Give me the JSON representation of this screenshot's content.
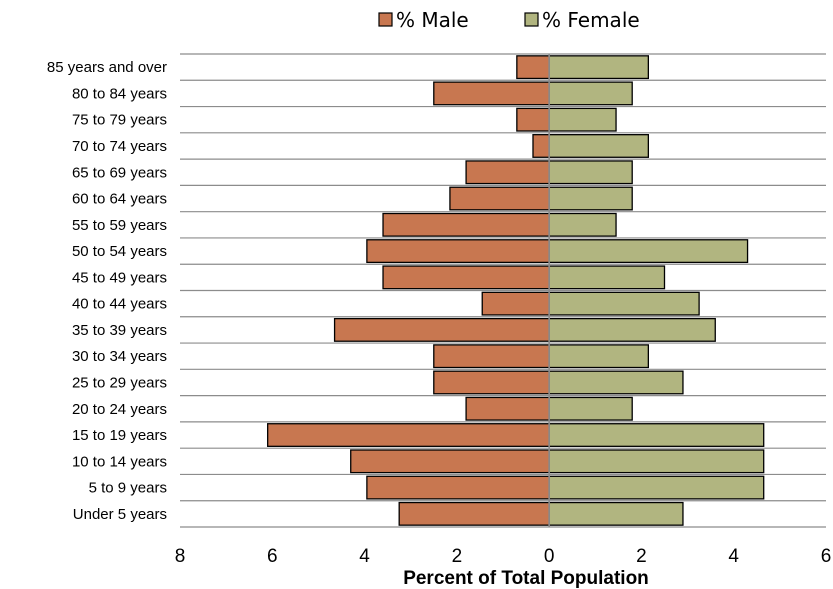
{
  "chart_data": {
    "type": "bar",
    "orientation": "horizontal",
    "subtype": "population-pyramid",
    "title": "",
    "xlabel": "Percent of Total Population",
    "ylabel": "",
    "xlim": [
      -8,
      6
    ],
    "x_ticks": [
      -8,
      -6,
      -4,
      -2,
      0,
      2,
      4,
      6
    ],
    "x_tick_labels": [
      "8",
      "6",
      "4",
      "2",
      "0",
      "2",
      "4",
      "6"
    ],
    "grid": "horizontal-lines",
    "legend": {
      "position": "top-center"
    },
    "categories": [
      "85 years and over",
      "80 to 84 years",
      "75 to 79 years",
      "70 to 74 years",
      "65 to 69 years",
      "60 to 64 years",
      "55 to 59 years",
      "50 to 54 years",
      "45 to 49 years",
      "40 to 44 years",
      "35 to 39 years",
      "30 to 34 years",
      "25 to 29 years",
      "20 to 24 years",
      "15 to 19 years",
      "10 to 14 years",
      "5 to 9 years",
      "Under 5 years"
    ],
    "series": [
      {
        "name": "% Male",
        "color": "#c87750",
        "values": [
          -0.7,
          -2.5,
          -0.7,
          -0.35,
          -1.8,
          -2.15,
          -3.6,
          -3.95,
          -3.6,
          -1.45,
          -4.65,
          -2.5,
          -2.5,
          -1.8,
          -6.1,
          -4.3,
          -3.95,
          -3.25
        ]
      },
      {
        "name": "% Female",
        "color": "#b1b580",
        "values": [
          2.15,
          1.8,
          1.45,
          2.15,
          1.8,
          1.8,
          1.45,
          4.3,
          2.5,
          3.25,
          3.6,
          2.15,
          2.9,
          1.8,
          4.65,
          4.65,
          4.65,
          2.9
        ]
      }
    ]
  }
}
